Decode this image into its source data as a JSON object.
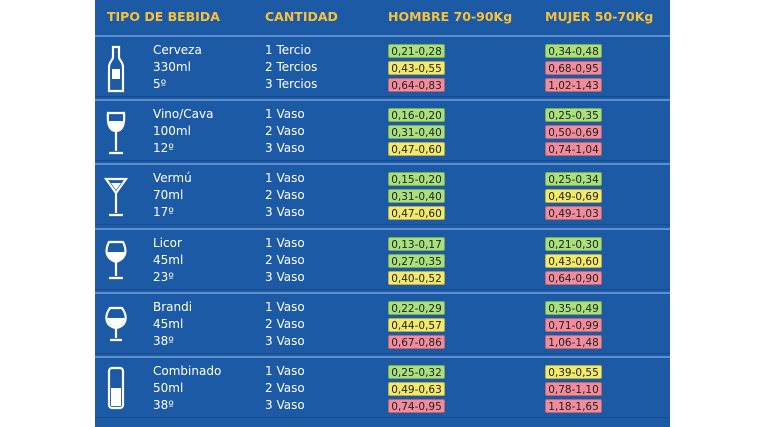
{
  "header": {
    "tipo": "TIPO DE BEBIDA",
    "cantidad": "CANTIDAD",
    "hombre": "HOMBRE 70-90Kg",
    "mujer": "MUJER 50-70Kg"
  },
  "colors": {
    "green": "#a8e07c",
    "yellow": "#f3ea6b",
    "pink": "#f28c9c"
  },
  "drinks": [
    {
      "name": "Cerveza",
      "volume": "330ml",
      "degrees": "5º",
      "rows": [
        {
          "cantidad": "1 Tercio",
          "hombre": {
            "text": "0,21-0,28",
            "color": "green"
          },
          "mujer": {
            "text": "0,34-0,48",
            "color": "green"
          }
        },
        {
          "cantidad": "2 Tercios",
          "hombre": {
            "text": "0,43-0,55",
            "color": "yellow"
          },
          "mujer": {
            "text": "0,68-0,95",
            "color": "pink"
          }
        },
        {
          "cantidad": "3 Tercios",
          "hombre": {
            "text": "0,64-0,83",
            "color": "pink"
          },
          "mujer": {
            "text": "1,02-1,43",
            "color": "pink"
          }
        }
      ]
    },
    {
      "name": "Vino/Cava",
      "volume": "100ml",
      "degrees": "12º",
      "rows": [
        {
          "cantidad": "1 Vaso",
          "hombre": {
            "text": "0,16-0,20",
            "color": "green"
          },
          "mujer": {
            "text": "0,25-0,35",
            "color": "green"
          }
        },
        {
          "cantidad": "2 Vaso",
          "hombre": {
            "text": "0,31-0,40",
            "color": "green"
          },
          "mujer": {
            "text": "0,50-0,69",
            "color": "pink"
          }
        },
        {
          "cantidad": "3 Vaso",
          "hombre": {
            "text": "0,47-0,60",
            "color": "yellow"
          },
          "mujer": {
            "text": "0,74-1,04",
            "color": "pink"
          }
        }
      ]
    },
    {
      "name": "Vermú",
      "volume": "70ml",
      "degrees": "17º",
      "rows": [
        {
          "cantidad": "1 Vaso",
          "hombre": {
            "text": "0,15-0,20",
            "color": "green"
          },
          "mujer": {
            "text": "0,25-0,34",
            "color": "green"
          }
        },
        {
          "cantidad": "2 Vaso",
          "hombre": {
            "text": "0,31-0,40",
            "color": "green"
          },
          "mujer": {
            "text": "0,49-0,69",
            "color": "yellow"
          }
        },
        {
          "cantidad": "3 Vaso",
          "hombre": {
            "text": "0,47-0,60",
            "color": "yellow"
          },
          "mujer": {
            "text": "0,49-1,03",
            "color": "pink"
          }
        }
      ]
    },
    {
      "name": "Licor",
      "volume": "45ml",
      "degrees": "23º",
      "rows": [
        {
          "cantidad": "1 Vaso",
          "hombre": {
            "text": "0,13-0,17",
            "color": "green"
          },
          "mujer": {
            "text": "0,21-0,30",
            "color": "green"
          }
        },
        {
          "cantidad": "2 Vaso",
          "hombre": {
            "text": "0,27-0,35",
            "color": "green"
          },
          "mujer": {
            "text": "0,43-0,60",
            "color": "yellow"
          }
        },
        {
          "cantidad": "3 Vaso",
          "hombre": {
            "text": "0,40-0,52",
            "color": "yellow"
          },
          "mujer": {
            "text": "0,64-0,90",
            "color": "pink"
          }
        }
      ]
    },
    {
      "name": "Brandi",
      "volume": "45ml",
      "degrees": "38º",
      "rows": [
        {
          "cantidad": "1 Vaso",
          "hombre": {
            "text": "0,22-0,29",
            "color": "green"
          },
          "mujer": {
            "text": "0,35-0,49",
            "color": "green"
          }
        },
        {
          "cantidad": "2 Vaso",
          "hombre": {
            "text": "0,44-0,57",
            "color": "yellow"
          },
          "mujer": {
            "text": "0,71-0,99",
            "color": "pink"
          }
        },
        {
          "cantidad": "3 Vaso",
          "hombre": {
            "text": "0,67-0,86",
            "color": "pink"
          },
          "mujer": {
            "text": "1,06-1,48",
            "color": "pink"
          }
        }
      ]
    },
    {
      "name": "Combinado",
      "volume": "50ml",
      "degrees": "38º",
      "rows": [
        {
          "cantidad": "1 Vaso",
          "hombre": {
            "text": "0,25-0,32",
            "color": "green"
          },
          "mujer": {
            "text": "0,39-0,55",
            "color": "yellow"
          }
        },
        {
          "cantidad": "2 Vaso",
          "hombre": {
            "text": "0,49-0,63",
            "color": "yellow"
          },
          "mujer": {
            "text": "0,78-1,10",
            "color": "pink"
          }
        },
        {
          "cantidad": "3 Vaso",
          "hombre": {
            "text": "0,74-0,95",
            "color": "pink"
          },
          "mujer": {
            "text": "1,18-1,65",
            "color": "pink"
          }
        }
      ]
    }
  ]
}
